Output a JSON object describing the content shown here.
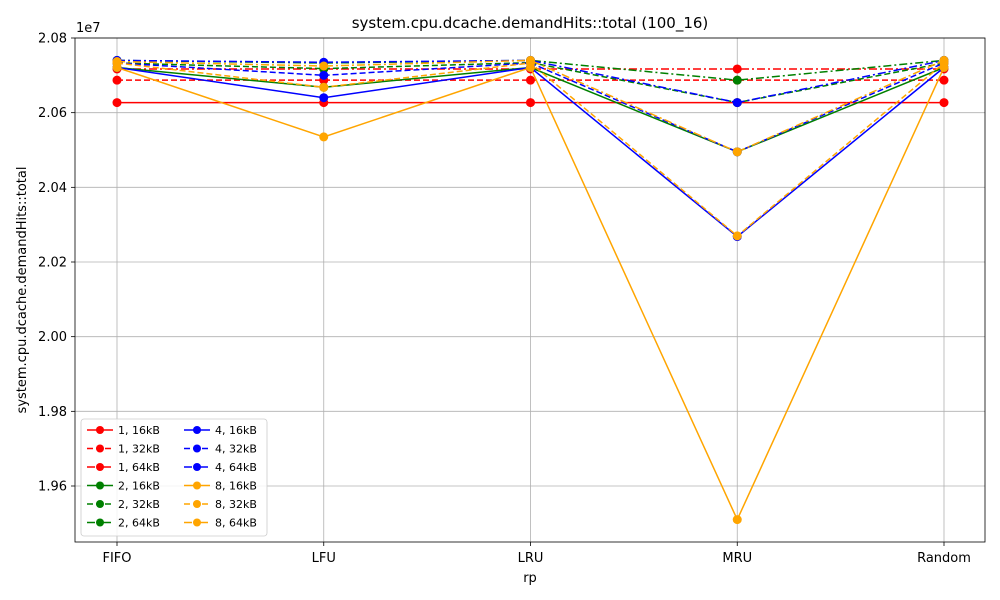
{
  "chart_data": {
    "type": "line",
    "title": "system.cpu.dcache.demandHits::total (100_16)",
    "xlabel": "rp",
    "ylabel": "system.cpu.dcache.demandHits::total",
    "y_scale_label": "1e7",
    "categories": [
      "FIFO",
      "LFU",
      "LRU",
      "MRU",
      "Random"
    ],
    "ylim": [
      1.945,
      2.08
    ],
    "yticks": [
      1.96,
      1.98,
      2.0,
      2.02,
      2.04,
      2.06,
      2.08
    ],
    "ytick_labels": [
      "1.96",
      "1.98",
      "2.00",
      "2.02",
      "2.04",
      "2.06",
      "2.08"
    ],
    "grid": true,
    "legend_position": "lower-left",
    "legend_columns": 2,
    "series": [
      {
        "name": "1, 16kB",
        "color": "#ff0000",
        "dash": "solid",
        "values": [
          2.0627,
          2.0627,
          2.0627,
          2.0627,
          2.0627
        ]
      },
      {
        "name": "1, 32kB",
        "color": "#ff0000",
        "dash": "dashed",
        "values": [
          2.0687,
          2.0687,
          2.0687,
          2.0687,
          2.0687
        ]
      },
      {
        "name": "1, 64kB",
        "color": "#ff0000",
        "dash": "dashdot",
        "values": [
          2.0717,
          2.0717,
          2.0717,
          2.0717,
          2.0717
        ]
      },
      {
        "name": "2, 16kB",
        "color": "#008000",
        "dash": "solid",
        "values": [
          2.0721,
          2.0668,
          2.0721,
          2.0495,
          2.0721
        ]
      },
      {
        "name": "2, 32kB",
        "color": "#008000",
        "dash": "dashed",
        "values": [
          2.0733,
          2.0718,
          2.0734,
          2.0627,
          2.0733
        ]
      },
      {
        "name": "2, 64kB",
        "color": "#008000",
        "dash": "dashdot",
        "values": [
          2.074,
          2.0733,
          2.074,
          2.0687,
          2.074
        ]
      },
      {
        "name": "4, 16kB",
        "color": "#0000ff",
        "dash": "solid",
        "values": [
          2.0721,
          2.064,
          2.0721,
          2.0268,
          2.0721
        ]
      },
      {
        "name": "4, 32kB",
        "color": "#0000ff",
        "dash": "dashed",
        "values": [
          2.0733,
          2.07,
          2.0733,
          2.0495,
          2.0733
        ]
      },
      {
        "name": "4, 64kB",
        "color": "#0000ff",
        "dash": "dashdot",
        "values": [
          2.074,
          2.0735,
          2.074,
          2.0627,
          2.074
        ]
      },
      {
        "name": "8, 16kB",
        "color": "#ffa500",
        "dash": "solid",
        "values": [
          2.0721,
          2.0535,
          2.0721,
          1.951,
          2.0721
        ]
      },
      {
        "name": "8, 32kB",
        "color": "#ffa500",
        "dash": "dashed",
        "values": [
          2.0733,
          2.0668,
          2.0733,
          2.027,
          2.0733
        ]
      },
      {
        "name": "8, 64kB",
        "color": "#ffa500",
        "dash": "dashdot",
        "values": [
          2.0737,
          2.0725,
          2.074,
          2.0495,
          2.074
        ]
      }
    ]
  }
}
